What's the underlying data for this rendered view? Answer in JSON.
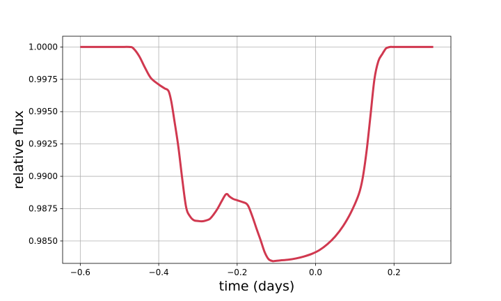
{
  "chart_data": {
    "type": "line",
    "title": "",
    "xlabel": "time (days)",
    "ylabel": "relative flux",
    "xlim": [
      -0.645,
      0.345
    ],
    "ylim": [
      0.98327,
      1.00083
    ],
    "x_ticks": [
      -0.6,
      -0.4,
      -0.2,
      0.0,
      0.2
    ],
    "x_tick_labels": [
      "−0.6",
      "−0.4",
      "−0.2",
      "0.0",
      "0.2"
    ],
    "y_ticks": [
      0.985,
      0.9875,
      0.99,
      0.9925,
      0.995,
      0.9975,
      1.0
    ],
    "y_tick_labels": [
      "0.9850",
      "0.9875",
      "0.9900",
      "0.9925",
      "0.9950",
      "0.9975",
      "1.0000"
    ],
    "grid": true,
    "legend": "none",
    "series": [
      {
        "color": "#d0384f",
        "x": [
          -0.6,
          -0.55,
          -0.5,
          -0.475,
          -0.465,
          -0.45,
          -0.435,
          -0.42,
          -0.4,
          -0.385,
          -0.375,
          -0.368,
          -0.36,
          -0.35,
          -0.34,
          -0.33,
          -0.32,
          -0.31,
          -0.3,
          -0.29,
          -0.28,
          -0.27,
          -0.26,
          -0.25,
          -0.24,
          -0.23,
          -0.225,
          -0.22,
          -0.21,
          -0.2,
          -0.19,
          -0.18,
          -0.175,
          -0.17,
          -0.16,
          -0.15,
          -0.14,
          -0.13,
          -0.12,
          -0.11,
          -0.105,
          -0.09,
          -0.07,
          -0.05,
          -0.03,
          -0.01,
          0.01,
          0.03,
          0.05,
          0.07,
          0.09,
          0.11,
          0.12,
          0.13,
          0.14,
          0.15,
          0.16,
          0.17,
          0.175,
          0.18,
          0.19,
          0.2,
          0.25,
          0.3
        ],
        "y": [
          1.0,
          1.0,
          1.0,
          1.0,
          0.9999,
          0.9993,
          0.9984,
          0.9976,
          0.9971,
          0.9968,
          0.9966,
          0.9958,
          0.9943,
          0.9923,
          0.9898,
          0.9876,
          0.9869,
          0.9866,
          0.98655,
          0.98652,
          0.98658,
          0.9867,
          0.98705,
          0.9875,
          0.98805,
          0.98857,
          0.98862,
          0.98845,
          0.98825,
          0.98815,
          0.98805,
          0.98795,
          0.98785,
          0.9876,
          0.9868,
          0.9859,
          0.98505,
          0.98415,
          0.9836,
          0.98345,
          0.98345,
          0.9835,
          0.98355,
          0.98365,
          0.9838,
          0.984,
          0.9843,
          0.98475,
          0.98535,
          0.98615,
          0.9872,
          0.9886,
          0.98985,
          0.99195,
          0.9947,
          0.9975,
          0.9989,
          0.99945,
          0.9997,
          0.9999,
          1.0,
          1.0,
          1.0,
          1.0
        ]
      }
    ]
  }
}
